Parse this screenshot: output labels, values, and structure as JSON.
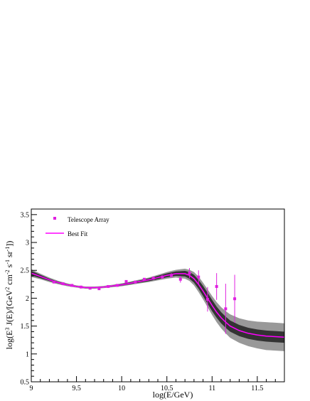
{
  "chart_data": {
    "type": "scatter",
    "xlabel": "log(E/GeV)",
    "ylabel_parts": [
      "log(E",
      "3",
      " J(E)/[GeV",
      "2",
      " cm",
      "-2",
      " s",
      "-1",
      " sr",
      "-1",
      "])"
    ],
    "xlim": [
      9,
      11.8
    ],
    "ylim": [
      0.5,
      3.6
    ],
    "x_ticks": [
      9,
      9.5,
      10,
      10.5,
      11,
      11.5
    ],
    "x_tick_labels": [
      "9",
      "9.5",
      "10",
      "10.5",
      "11",
      "11.5"
    ],
    "y_ticks": [
      0.5,
      1,
      1.5,
      2,
      2.5,
      3,
      3.5
    ],
    "y_tick_labels": [
      "0.5",
      "1",
      "1.5",
      "2",
      "2.5",
      "3",
      "3.5"
    ],
    "legend": {
      "placement": "top-left",
      "entries": [
        "Telescope Array",
        "Best Fit"
      ]
    },
    "colors": {
      "data": "#e020e0",
      "fit": "#ff00ff",
      "band_inner": "#333333",
      "band_outer": "#999999"
    },
    "series": [
      {
        "name": "Telescope Array",
        "points": [
          {
            "x": 9.25,
            "y": 2.29,
            "err": 0.01
          },
          {
            "x": 9.35,
            "y": 2.26,
            "err": 0.01
          },
          {
            "x": 9.45,
            "y": 2.23,
            "err": 0.01
          },
          {
            "x": 9.55,
            "y": 2.2,
            "err": 0.01
          },
          {
            "x": 9.65,
            "y": 2.18,
            "err": 0.01
          },
          {
            "x": 9.75,
            "y": 2.17,
            "err": 0.02
          },
          {
            "x": 9.85,
            "y": 2.21,
            "err": 0.02
          },
          {
            "x": 9.95,
            "y": 2.23,
            "err": 0.02
          },
          {
            "x": 10.05,
            "y": 2.3,
            "err": 0.02
          },
          {
            "x": 10.15,
            "y": 2.29,
            "err": 0.02
          },
          {
            "x": 10.25,
            "y": 2.34,
            "err": 0.02
          },
          {
            "x": 10.35,
            "y": 2.36,
            "err": 0.03
          },
          {
            "x": 10.45,
            "y": 2.38,
            "err": 0.03
          },
          {
            "x": 10.55,
            "y": 2.41,
            "err": 0.04
          },
          {
            "x": 10.65,
            "y": 2.34,
            "err": 0.06
          },
          {
            "x": 10.75,
            "y": 2.45,
            "err": 0.09
          },
          {
            "x": 10.85,
            "y": 2.38,
            "err": 0.12
          },
          {
            "x": 10.95,
            "y": 1.98,
            "err": 0.22
          },
          {
            "x": 11.05,
            "y": 2.21,
            "err": 0.24
          },
          {
            "x": 11.15,
            "y": 1.81,
            "err": 0.45
          },
          {
            "x": 11.25,
            "y": 1.99,
            "err": 0.43
          }
        ]
      },
      {
        "name": "Best Fit",
        "x": [
          9.0,
          9.1,
          9.2,
          9.3,
          9.4,
          9.5,
          9.6,
          9.7,
          9.8,
          9.9,
          10.0,
          10.1,
          10.2,
          10.3,
          10.4,
          10.5,
          10.6,
          10.7,
          10.75,
          10.8,
          10.85,
          10.9,
          10.95,
          11.0,
          11.05,
          11.1,
          11.15,
          11.2,
          11.3,
          11.4,
          11.5,
          11.6,
          11.7,
          11.8
        ],
        "y": [
          2.45,
          2.39,
          2.33,
          2.28,
          2.24,
          2.21,
          2.19,
          2.19,
          2.2,
          2.22,
          2.24,
          2.27,
          2.3,
          2.33,
          2.37,
          2.41,
          2.44,
          2.44,
          2.41,
          2.35,
          2.25,
          2.13,
          2.0,
          1.87,
          1.75,
          1.65,
          1.57,
          1.5,
          1.42,
          1.37,
          1.34,
          1.32,
          1.31,
          1.3
        ],
        "band_inner_half": [
          0.04,
          0.03,
          0.02,
          0.015,
          0.012,
          0.01,
          0.01,
          0.01,
          0.01,
          0.012,
          0.015,
          0.018,
          0.02,
          0.025,
          0.03,
          0.035,
          0.04,
          0.05,
          0.06,
          0.07,
          0.08,
          0.09,
          0.1,
          0.1,
          0.1,
          0.1,
          0.1,
          0.1,
          0.1,
          0.1,
          0.1,
          0.1,
          0.1,
          0.1
        ],
        "band_outer_half": [
          0.07,
          0.05,
          0.04,
          0.03,
          0.025,
          0.02,
          0.02,
          0.02,
          0.02,
          0.022,
          0.025,
          0.03,
          0.035,
          0.04,
          0.05,
          0.06,
          0.07,
          0.09,
          0.1,
          0.12,
          0.14,
          0.15,
          0.16,
          0.17,
          0.18,
          0.19,
          0.2,
          0.21,
          0.22,
          0.23,
          0.24,
          0.25,
          0.25,
          0.25
        ]
      }
    ]
  }
}
